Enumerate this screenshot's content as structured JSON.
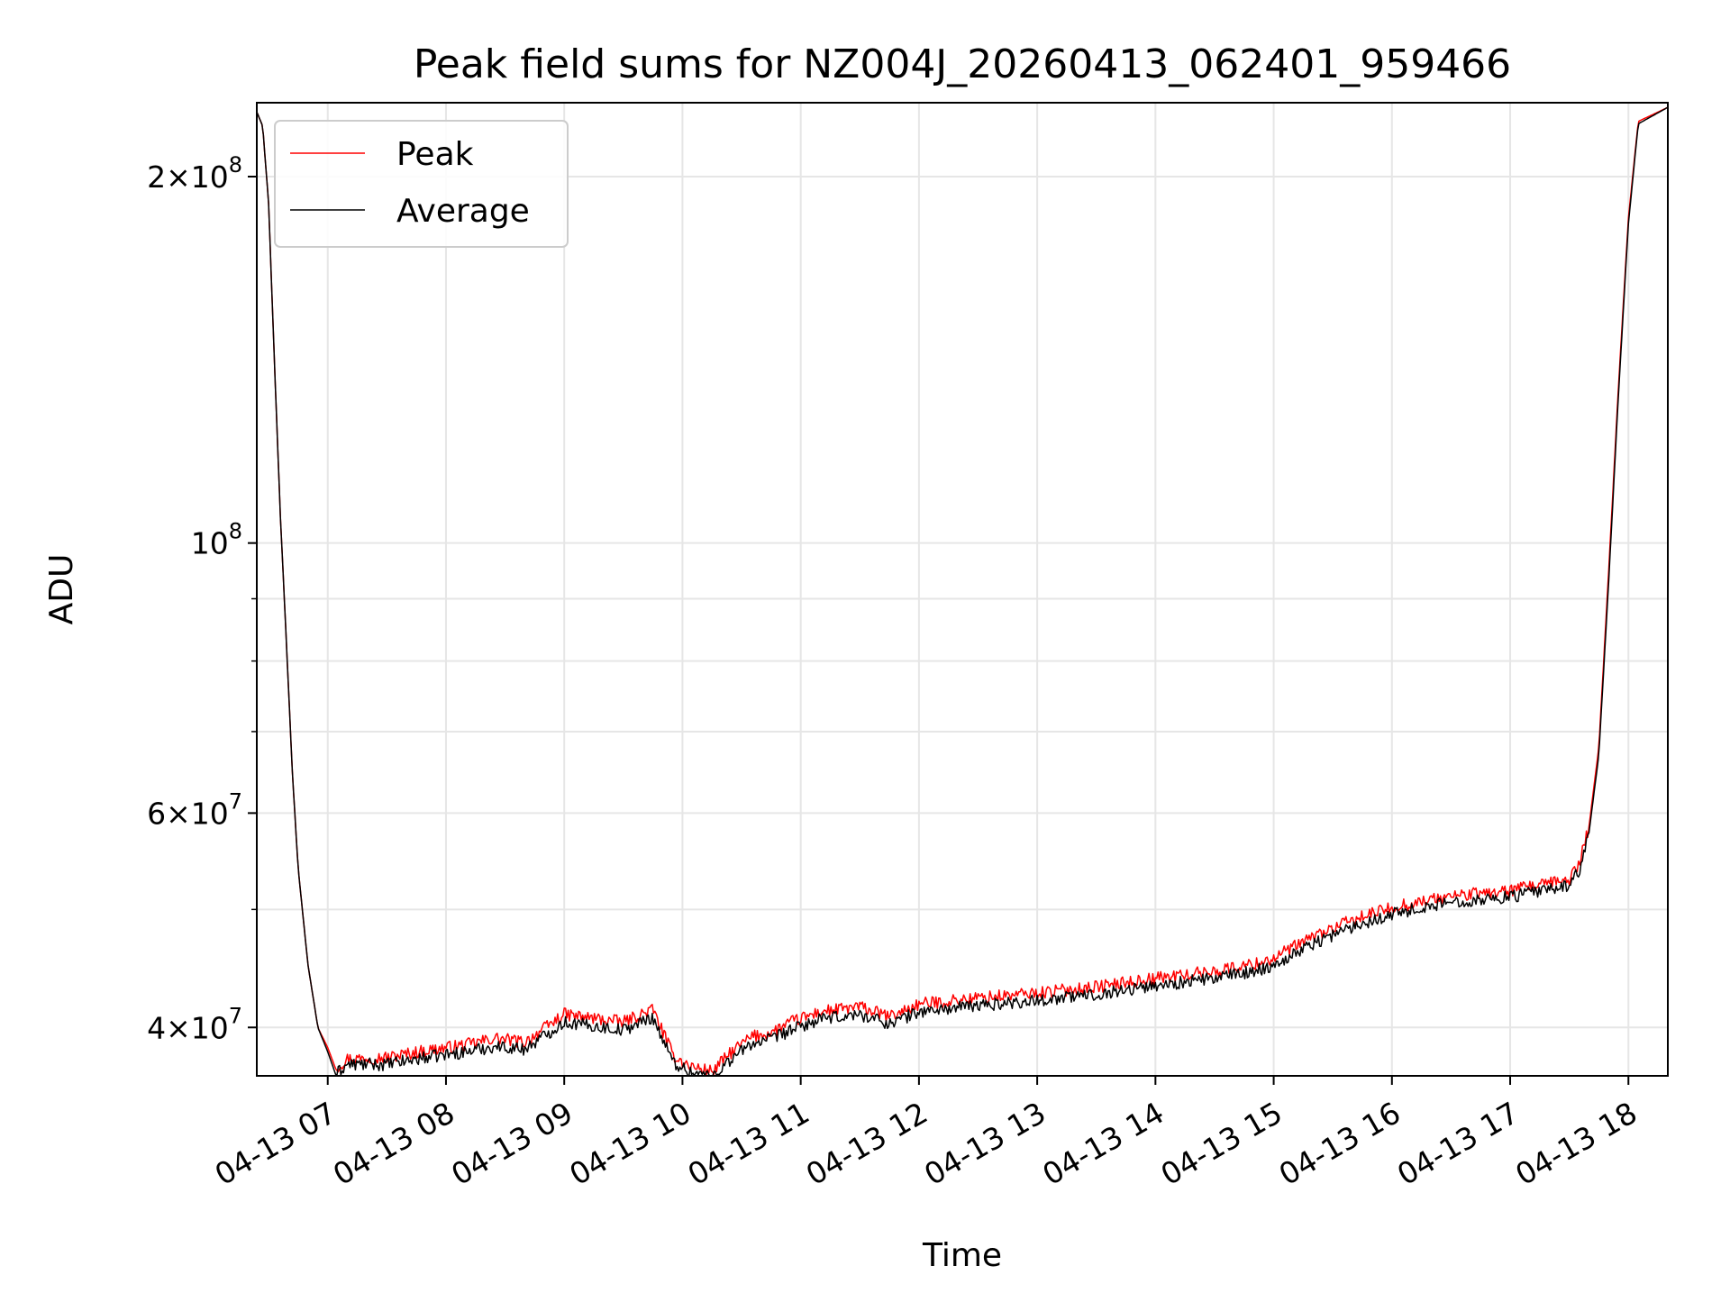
{
  "chart_data": {
    "type": "line",
    "title": "Peak field sums for NZ004J_20260413_062401_959466",
    "xlabel": "Time",
    "ylabel": "ADU",
    "xscale": "time",
    "yscale": "log",
    "xlim": [
      "2026-04-13 06:24",
      "2026-04-13 18:20"
    ],
    "ylim": [
      36500000,
      230000000
    ],
    "grid": true,
    "legend_position": "top-left",
    "x_ticks": [
      {
        "value": "2026-04-13 07:00",
        "label": "04-13 07"
      },
      {
        "value": "2026-04-13 08:00",
        "label": "04-13 08"
      },
      {
        "value": "2026-04-13 09:00",
        "label": "04-13 09"
      },
      {
        "value": "2026-04-13 10:00",
        "label": "04-13 10"
      },
      {
        "value": "2026-04-13 11:00",
        "label": "04-13 11"
      },
      {
        "value": "2026-04-13 12:00",
        "label": "04-13 12"
      },
      {
        "value": "2026-04-13 13:00",
        "label": "04-13 13"
      },
      {
        "value": "2026-04-13 14:00",
        "label": "04-13 14"
      },
      {
        "value": "2026-04-13 15:00",
        "label": "04-13 15"
      },
      {
        "value": "2026-04-13 16:00",
        "label": "04-13 16"
      },
      {
        "value": "2026-04-13 17:00",
        "label": "04-13 17"
      },
      {
        "value": "2026-04-13 18:00",
        "label": "04-13 18"
      }
    ],
    "y_major_ticks": [
      {
        "value": 40000000,
        "mantissa": "4",
        "exponent": "7"
      },
      {
        "value": 60000000,
        "mantissa": "6",
        "exponent": "7"
      },
      {
        "value": 100000000,
        "mantissa": "",
        "exponent": "8"
      },
      {
        "value": 200000000,
        "mantissa": "2",
        "exponent": "8"
      }
    ],
    "y_minor_ticks": [
      50000000,
      70000000,
      80000000,
      90000000
    ],
    "series": [
      {
        "name": "Peak",
        "color": "#ff0000",
        "noise": 0.015,
        "x": [
          "2026-04-13 06:24",
          "2026-04-13 06:27",
          "2026-04-13 06:30",
          "2026-04-13 06:33",
          "2026-04-13 06:36",
          "2026-04-13 06:39",
          "2026-04-13 06:42",
          "2026-04-13 06:45",
          "2026-04-13 06:50",
          "2026-04-13 06:55",
          "2026-04-13 07:00",
          "2026-04-13 07:04",
          "2026-04-13 07:10",
          "2026-04-13 07:30",
          "2026-04-13 07:50",
          "2026-04-13 08:10",
          "2026-04-13 08:25",
          "2026-04-13 08:40",
          "2026-04-13 09:00",
          "2026-04-13 09:15",
          "2026-04-13 09:30",
          "2026-04-13 09:45",
          "2026-04-13 09:55",
          "2026-04-13 10:03",
          "2026-04-13 10:15",
          "2026-04-13 10:25",
          "2026-04-13 10:35",
          "2026-04-13 10:45",
          "2026-04-13 10:55",
          "2026-04-13 11:10",
          "2026-04-13 11:30",
          "2026-04-13 11:45",
          "2026-04-13 12:00",
          "2026-04-13 12:30",
          "2026-04-13 13:00",
          "2026-04-13 13:30",
          "2026-04-13 14:00",
          "2026-04-13 14:30",
          "2026-04-13 14:50",
          "2026-04-13 15:00",
          "2026-04-13 15:20",
          "2026-04-13 15:40",
          "2026-04-13 16:00",
          "2026-04-13 16:30",
          "2026-04-13 17:00",
          "2026-04-13 17:10",
          "2026-04-13 17:20",
          "2026-04-13 17:30",
          "2026-04-13 17:35",
          "2026-04-13 17:40",
          "2026-04-13 17:45",
          "2026-04-13 17:50",
          "2026-04-13 17:55",
          "2026-04-13 18:00",
          "2026-04-13 18:05",
          "2026-04-13 18:20"
        ],
        "y": [
          226000000,
          220000000,
          190000000,
          140000000,
          105000000,
          83000000,
          65000000,
          54000000,
          45000000,
          40000000,
          38500000,
          37000000,
          37700000,
          37800000,
          38300000,
          38700000,
          39200000,
          38900000,
          41000000,
          40700000,
          40400000,
          41400000,
          38000000,
          37200000,
          36800000,
          38200000,
          39300000,
          39600000,
          40400000,
          41200000,
          41600000,
          40800000,
          41800000,
          42300000,
          42700000,
          43200000,
          43900000,
          44500000,
          45100000,
          45600000,
          47500000,
          49000000,
          50200000,
          51300000,
          51800000,
          52200000,
          52500000,
          53000000,
          54500000,
          58500000,
          68000000,
          95000000,
          135000000,
          185000000,
          222000000,
          228000000
        ]
      },
      {
        "name": "Average",
        "color": "#000000",
        "noise": 0.015,
        "x": [
          "2026-04-13 06:24",
          "2026-04-13 06:27",
          "2026-04-13 06:30",
          "2026-04-13 06:33",
          "2026-04-13 06:36",
          "2026-04-13 06:39",
          "2026-04-13 06:42",
          "2026-04-13 06:45",
          "2026-04-13 06:50",
          "2026-04-13 06:55",
          "2026-04-13 07:00",
          "2026-04-13 07:04",
          "2026-04-13 07:10",
          "2026-04-13 07:30",
          "2026-04-13 07:50",
          "2026-04-13 08:10",
          "2026-04-13 08:25",
          "2026-04-13 08:40",
          "2026-04-13 09:00",
          "2026-04-13 09:15",
          "2026-04-13 09:30",
          "2026-04-13 09:45",
          "2026-04-13 09:55",
          "2026-04-13 10:03",
          "2026-04-13 10:15",
          "2026-04-13 10:25",
          "2026-04-13 10:35",
          "2026-04-13 10:45",
          "2026-04-13 10:55",
          "2026-04-13 11:10",
          "2026-04-13 11:30",
          "2026-04-13 11:45",
          "2026-04-13 12:00",
          "2026-04-13 12:30",
          "2026-04-13 13:00",
          "2026-04-13 13:30",
          "2026-04-13 14:00",
          "2026-04-13 14:30",
          "2026-04-13 14:50",
          "2026-04-13 15:00",
          "2026-04-13 15:20",
          "2026-04-13 15:40",
          "2026-04-13 16:00",
          "2026-04-13 16:30",
          "2026-04-13 17:00",
          "2026-04-13 17:10",
          "2026-04-13 17:20",
          "2026-04-13 17:30",
          "2026-04-13 17:35",
          "2026-04-13 17:40",
          "2026-04-13 17:45",
          "2026-04-13 17:50",
          "2026-04-13 17:55",
          "2026-04-13 18:00",
          "2026-04-13 18:05",
          "2026-04-13 18:20"
        ],
        "y": [
          226000000,
          220000000,
          190000000,
          140000000,
          105000000,
          83000000,
          65000000,
          54000000,
          45000000,
          40000000,
          38200000,
          36600000,
          37300000,
          37300000,
          37800000,
          38200000,
          38600000,
          38400000,
          40400000,
          40100000,
          39800000,
          40800000,
          37500000,
          36800000,
          36500000,
          37700000,
          38800000,
          39100000,
          39800000,
          40600000,
          41000000,
          40300000,
          41200000,
          41700000,
          42100000,
          42600000,
          43300000,
          43900000,
          44500000,
          45000000,
          46900000,
          48400000,
          49600000,
          50700000,
          51200000,
          51600000,
          51900000,
          52400000,
          53800000,
          57800000,
          67000000,
          93000000,
          133000000,
          183000000,
          221000000,
          228000000
        ]
      }
    ]
  }
}
